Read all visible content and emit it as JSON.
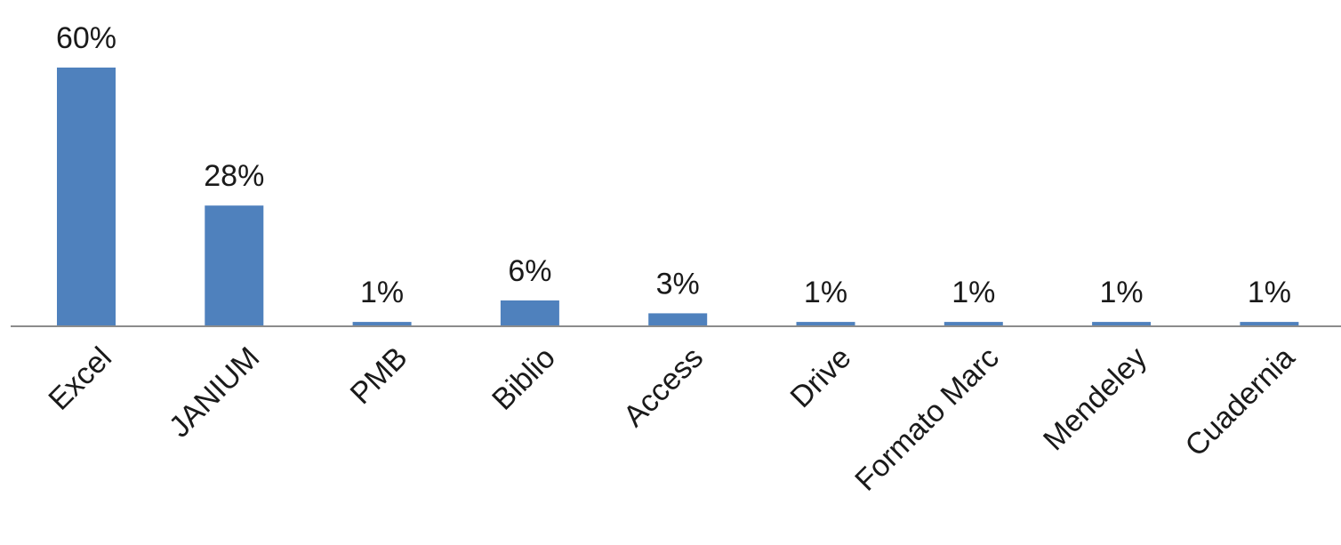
{
  "chart_data": {
    "type": "bar",
    "categories": [
      "Excel",
      "JANIUM",
      "PMB",
      "Biblio",
      "Access",
      "Drive",
      "Formato Marc",
      "Mendeley",
      "Cuadernia"
    ],
    "values": [
      60,
      28,
      1,
      6,
      3,
      1,
      1,
      1,
      1
    ],
    "value_labels": [
      "60%",
      "28%",
      "1%",
      "6%",
      "3%",
      "1%",
      "1%",
      "1%",
      "1%"
    ],
    "title": "",
    "xlabel": "",
    "ylabel": "",
    "ylim": [
      0,
      60
    ],
    "grid": false,
    "legend": "none",
    "colors": {
      "bar": "#4f81bd",
      "axis": "#8c8c8c",
      "text": "#1a1a1a"
    }
  }
}
